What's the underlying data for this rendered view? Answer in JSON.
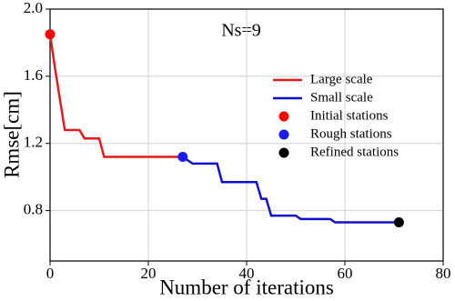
{
  "chart_data": {
    "type": "line",
    "annotation": "Ns=9",
    "xlabel": "Number of iterations",
    "ylabel": "Rmse[cm]",
    "xlim": [
      0,
      80
    ],
    "xticks": [
      0,
      20,
      40,
      60,
      80
    ],
    "ylim": [
      0.5,
      2.0
    ],
    "yticks": [
      0.8,
      1.2,
      1.6,
      {
        "value": 2,
        "label": "2.0"
      }
    ],
    "grid": true,
    "legend": "upper right",
    "series": [
      {
        "name": "Large scale",
        "color": "#e41a1c",
        "style": "line",
        "x": [
          0,
          1,
          3,
          6,
          7,
          10,
          11,
          27
        ],
        "y": [
          1.85,
          1.65,
          1.28,
          1.28,
          1.23,
          1.23,
          1.12,
          1.12
        ]
      },
      {
        "name": "Small scale",
        "color": "#1010cc",
        "style": "line",
        "x": [
          27,
          29,
          34,
          35,
          42,
          43,
          44,
          45,
          50,
          51,
          57,
          58,
          71
        ],
        "y": [
          1.12,
          1.08,
          1.08,
          0.97,
          0.97,
          0.87,
          0.87,
          0.77,
          0.77,
          0.75,
          0.75,
          0.73,
          0.73
        ]
      },
      {
        "name": "Initial stations",
        "color": "#ff0000",
        "style": "marker",
        "x": [
          0
        ],
        "y": [
          1.85
        ]
      },
      {
        "name": "Rough stations",
        "color": "#1a1aff",
        "style": "marker",
        "x": [
          27
        ],
        "y": [
          1.12
        ]
      },
      {
        "name": "Refined stations",
        "color": "#000000",
        "style": "marker",
        "x": [
          71
        ],
        "y": [
          0.73
        ]
      }
    ]
  }
}
